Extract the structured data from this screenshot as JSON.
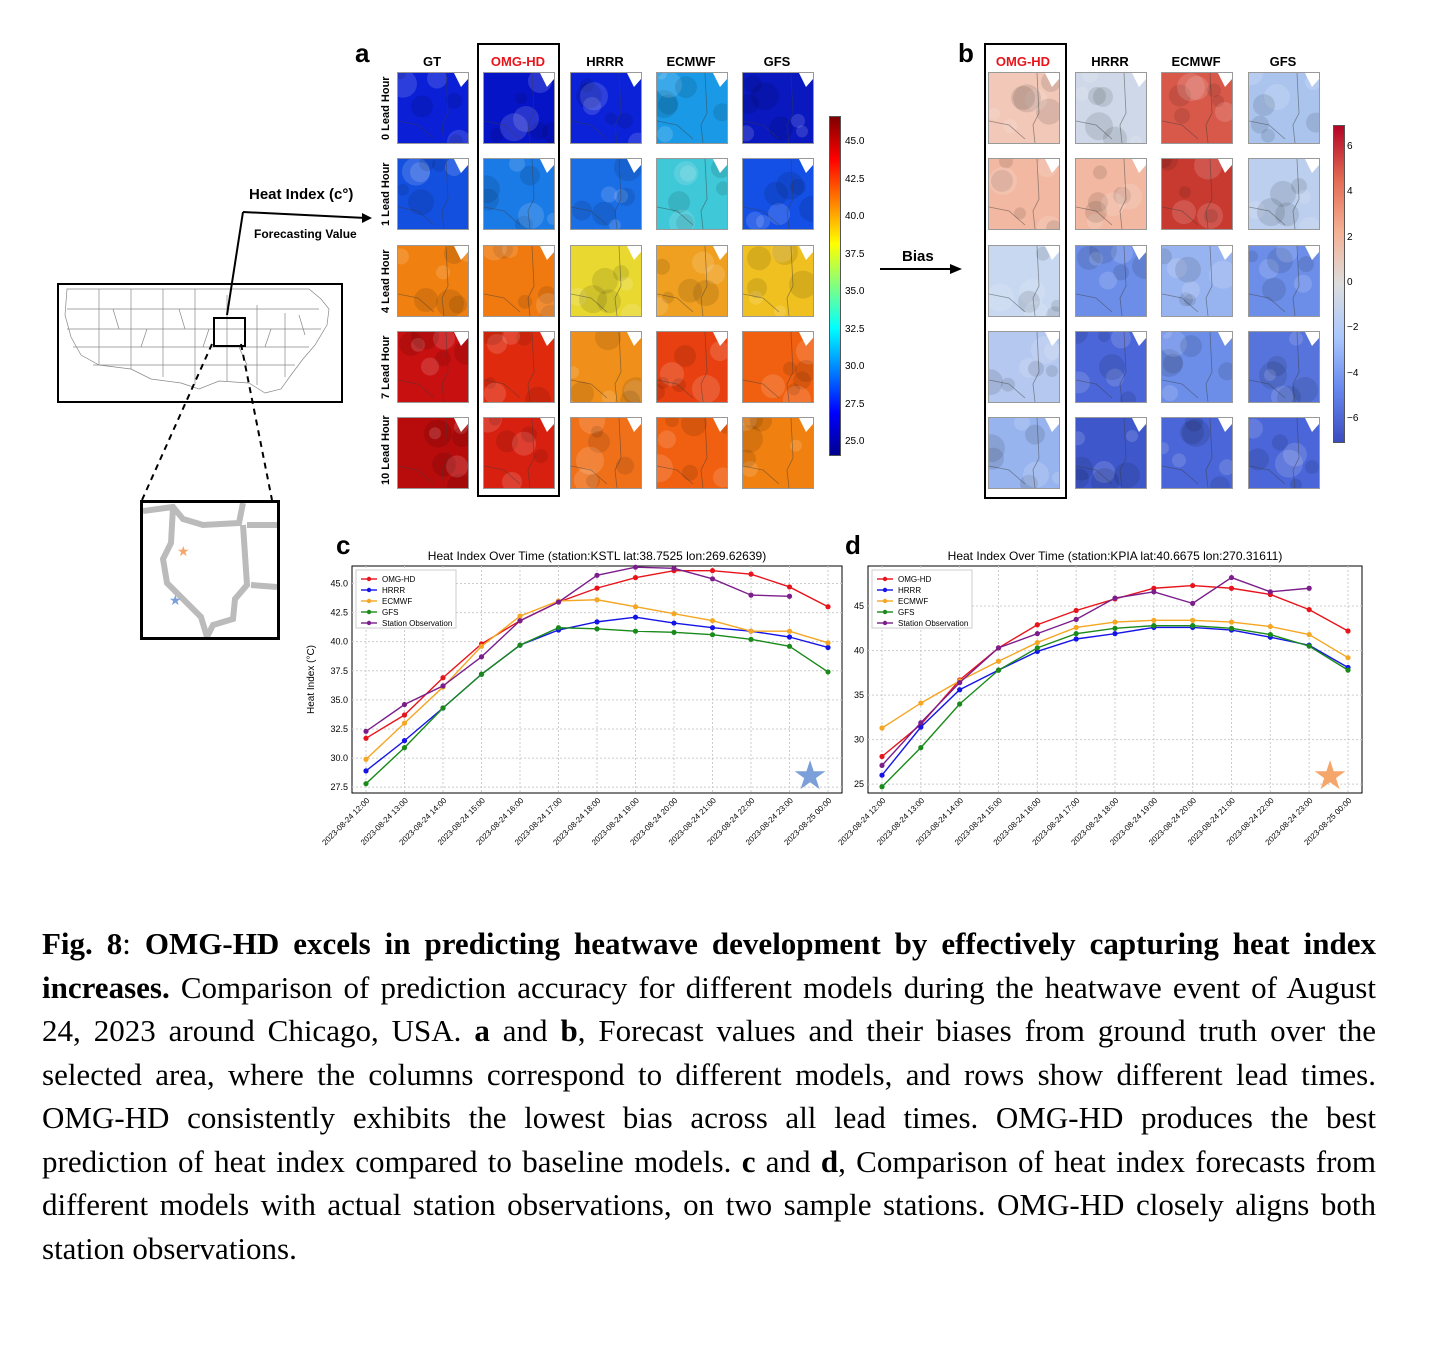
{
  "panels": {
    "a": {
      "letter": "a",
      "columns": [
        "GT",
        "OMG-HD",
        "HRRR",
        "ECMWF",
        "GFS"
      ],
      "rows": [
        "0 Lead Hour",
        "1 Lead Hour",
        "4 Lead Hour",
        "7 Lead Hour",
        "10 Lead Hour"
      ],
      "highlight": "OMG-HD",
      "colorbar": {
        "ticks": [
          "45.0",
          "42.5",
          "40.0",
          "37.5",
          "35.0",
          "32.5",
          "30.0",
          "27.5",
          "25.0"
        ],
        "colormap": "jet"
      }
    },
    "b": {
      "letter": "b",
      "columns": [
        "OMG-HD",
        "HRRR",
        "ECMWF",
        "GFS"
      ],
      "highlight": "OMG-HD",
      "colorbar": {
        "ticks": [
          "6",
          "4",
          "2",
          "0",
          "−2",
          "−4",
          "−6"
        ],
        "colormap": "coolwarm"
      }
    },
    "c": {
      "letter": "c"
    },
    "d": {
      "letter": "d"
    }
  },
  "annotations": {
    "heat_index_label": "Heat Index (c°)",
    "forecasting_value": "Forecasting Value",
    "bias_label": "Bias"
  },
  "colors": {
    "highlight_red": "#e8141b",
    "omg": "#e8141b",
    "hrrr": "#1414e6",
    "ecmwf": "#f5a623",
    "gfs": "#1a8a1a",
    "obs": "#7b1e8c",
    "star_blue": "#7b9fd9",
    "star_orange": "#f5a66b"
  },
  "chart_data": [
    {
      "type": "line",
      "title": "Heat Index Over Time (station:KSTL lat:38.7525 lon:269.62639)",
      "xlabel": "",
      "ylabel": "Heat Index (°C)",
      "ylim": [
        27,
        46.5
      ],
      "yticks": [
        "27.5",
        "30.0",
        "32.5",
        "35.0",
        "37.5",
        "40.0",
        "42.5",
        "45.0"
      ],
      "x": [
        "2023-08-24 12:00",
        "2023-08-24 13:00",
        "2023-08-24 14:00",
        "2023-08-24 15:00",
        "2023-08-24 16:00",
        "2023-08-24 17:00",
        "2023-08-24 18:00",
        "2023-08-24 19:00",
        "2023-08-24 20:00",
        "2023-08-24 21:00",
        "2023-08-24 22:00",
        "2023-08-24 23:00",
        "2023-08-25 00:00"
      ],
      "legend_position": "top-left",
      "grid": true,
      "marker_icon": "star-icon",
      "series": [
        {
          "name": "OMG-HD",
          "values": [
            31.7,
            33.7,
            36.9,
            39.8,
            41.8,
            43.4,
            44.6,
            45.5,
            46.1,
            46.1,
            45.8,
            44.7,
            43.0
          ]
        },
        {
          "name": "HRRR",
          "values": [
            28.9,
            31.5,
            34.3,
            37.2,
            39.7,
            41.0,
            41.7,
            42.1,
            41.6,
            41.2,
            40.9,
            40.4,
            39.5
          ]
        },
        {
          "name": "ECMWF",
          "values": [
            29.9,
            33.0,
            36.1,
            39.6,
            42.2,
            43.5,
            43.6,
            43.0,
            42.4,
            41.8,
            40.9,
            40.9,
            39.9
          ]
        },
        {
          "name": "GFS",
          "values": [
            27.8,
            30.9,
            34.3,
            37.2,
            39.7,
            41.2,
            41.1,
            40.9,
            40.8,
            40.6,
            40.2,
            39.6,
            37.4
          ]
        },
        {
          "name": "Station Observation",
          "values": [
            32.3,
            34.6,
            36.2,
            38.7,
            41.8,
            43.4,
            45.7,
            46.4,
            46.3,
            45.4,
            44.0,
            43.9,
            null
          ]
        }
      ]
    },
    {
      "type": "line",
      "title": "Heat Index Over Time (station:KPIA lat:40.6675 lon:270.31611)",
      "xlabel": "",
      "ylabel": "",
      "ylim": [
        24,
        49.5
      ],
      "yticks": [
        "25",
        "30",
        "35",
        "40",
        "45"
      ],
      "x": [
        "2023-08-24 12:00",
        "2023-08-24 13:00",
        "2023-08-24 14:00",
        "2023-08-24 15:00",
        "2023-08-24 16:00",
        "2023-08-24 17:00",
        "2023-08-24 18:00",
        "2023-08-24 19:00",
        "2023-08-24 20:00",
        "2023-08-24 21:00",
        "2023-08-24 22:00",
        "2023-08-24 23:00",
        "2023-08-25 00:00"
      ],
      "legend_position": "top-left",
      "grid": true,
      "marker_icon": "star-icon",
      "series": [
        {
          "name": "OMG-HD",
          "values": [
            28.1,
            31.7,
            36.7,
            40.3,
            42.9,
            44.5,
            45.8,
            47.0,
            47.3,
            47.0,
            46.3,
            44.6,
            42.2
          ]
        },
        {
          "name": "HRRR",
          "values": [
            26.0,
            31.4,
            35.6,
            37.8,
            39.9,
            41.3,
            41.9,
            42.6,
            42.6,
            42.3,
            41.5,
            40.6,
            38.1
          ]
        },
        {
          "name": "ECMWF",
          "values": [
            31.3,
            34.1,
            36.6,
            38.8,
            40.9,
            42.6,
            43.2,
            43.4,
            43.4,
            43.2,
            42.7,
            41.8,
            39.2
          ]
        },
        {
          "name": "GFS",
          "values": [
            24.7,
            29.1,
            34.0,
            37.8,
            40.3,
            41.9,
            42.5,
            42.8,
            42.8,
            42.5,
            41.8,
            40.5,
            37.8
          ]
        },
        {
          "name": "Station Observation",
          "values": [
            27.1,
            31.9,
            36.4,
            40.3,
            41.9,
            43.5,
            45.9,
            46.6,
            45.3,
            48.2,
            46.6,
            47.0,
            null
          ]
        }
      ]
    }
  ],
  "caption": {
    "figure_label": "Fig. 8",
    "colon": ": ",
    "headline": "OMG-HD excels in predicting heatwave development by effectively capturing heat index increases.",
    "text1": " Comparison of prediction accuracy for different models during the heatwave event of August 24, 2023 around Chicago, USA. ",
    "ab_a": "a",
    "ab_and": " and ",
    "ab_b": "b",
    "text2": ", Forecast values and their biases from ground truth over the selected area, where the columns correspond to different models, and rows show different lead times. OMG-HD consistently exhibits the lowest bias across all lead times. OMG-HD produces the best prediction of heat index compared to baseline models. ",
    "cd_c": "c",
    "cd_and": " and ",
    "cd_d": "d",
    "text3": ", Comparison of heat index forecasts from different models with actual station observations, on two sample stations. OMG-HD closely aligns both station observations."
  }
}
